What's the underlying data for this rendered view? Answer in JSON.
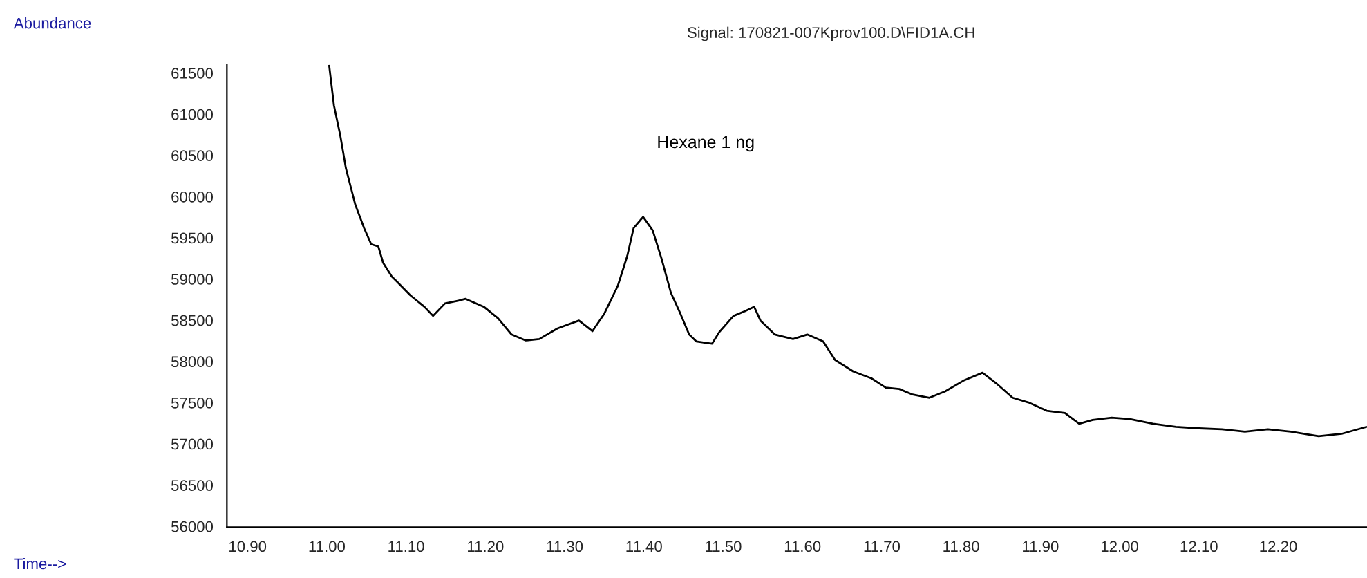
{
  "chart_data": {
    "type": "line",
    "title": "Signal: 170821-007Kprov100.D\\FID1A.CH",
    "annotations": [
      "Abundance",
      "Time-->",
      "Hexane 1 ng"
    ],
    "x": [
      11.003,
      11.009,
      11.017,
      11.024,
      11.036,
      11.047,
      11.056,
      11.065,
      11.071,
      11.082,
      11.088,
      11.105,
      11.123,
      11.134,
      11.149,
      11.166,
      11.175,
      11.198,
      11.216,
      11.233,
      11.251,
      11.268,
      11.291,
      11.318,
      11.335,
      11.35,
      11.367,
      11.379,
      11.387,
      11.399,
      11.411,
      11.422,
      11.434,
      11.446,
      11.457,
      11.466,
      11.486,
      11.495,
      11.513,
      11.527,
      11.539,
      11.547,
      11.565,
      11.588,
      11.606,
      11.626,
      11.641,
      11.664,
      11.687,
      11.705,
      11.722,
      11.739,
      11.76,
      11.78,
      11.803,
      11.827,
      11.844,
      11.865,
      11.885,
      11.908,
      11.931,
      11.949,
      11.966,
      11.99,
      12.013,
      12.042,
      12.071,
      12.1,
      12.129,
      12.158,
      12.187,
      12.216,
      12.251,
      12.28,
      12.311
    ],
    "series": [
      {
        "color": "#000000",
        "values": [
          61590,
          61106,
          60742,
          60348,
          59900,
          59619,
          59422,
          59395,
          59198,
          59030,
          58974,
          58806,
          58664,
          58553,
          58704,
          58738,
          58760,
          58664,
          58524,
          58327,
          58255,
          58272,
          58401,
          58496,
          58368,
          58580,
          58917,
          59282,
          59619,
          59754,
          59591,
          59254,
          58833,
          58580,
          58327,
          58243,
          58216,
          58356,
          58553,
          58609,
          58664,
          58496,
          58327,
          58272,
          58327,
          58243,
          58019,
          57879,
          57795,
          57683,
          57666,
          57598,
          57560,
          57638,
          57767,
          57863,
          57738,
          57560,
          57503,
          57402,
          57374,
          57244,
          57290,
          57318,
          57301,
          57244,
          57206,
          57189,
          57177,
          57149,
          57177,
          57149,
          57093,
          57122,
          57206
        ]
      }
    ],
    "xlim": [
      10.874,
      12.312
    ],
    "ylim": [
      55990,
      61600
    ],
    "xticks": [
      {
        "value": 10.9,
        "label": "10.90"
      },
      {
        "value": 11.0,
        "label": "11.00"
      },
      {
        "value": 11.1,
        "label": "11.10"
      },
      {
        "value": 11.2,
        "label": "11.20"
      },
      {
        "value": 11.3,
        "label": "11.30"
      },
      {
        "value": 11.4,
        "label": "11.40"
      },
      {
        "value": 11.5,
        "label": "11.50"
      },
      {
        "value": 11.6,
        "label": "11.60"
      },
      {
        "value": 11.7,
        "label": "11.70"
      },
      {
        "value": 11.8,
        "label": "11.80"
      },
      {
        "value": 11.9,
        "label": "11.90"
      },
      {
        "value": 12.0,
        "label": "12.00"
      },
      {
        "value": 12.1,
        "label": "12.10"
      },
      {
        "value": 12.2,
        "label": "12.20"
      }
    ],
    "yticks": [
      56000,
      56500,
      57000,
      57500,
      58000,
      58500,
      59000,
      59500,
      60000,
      60500,
      61000,
      61500
    ],
    "grid": false,
    "legend": false,
    "marker": "none",
    "line_style": "solid"
  }
}
